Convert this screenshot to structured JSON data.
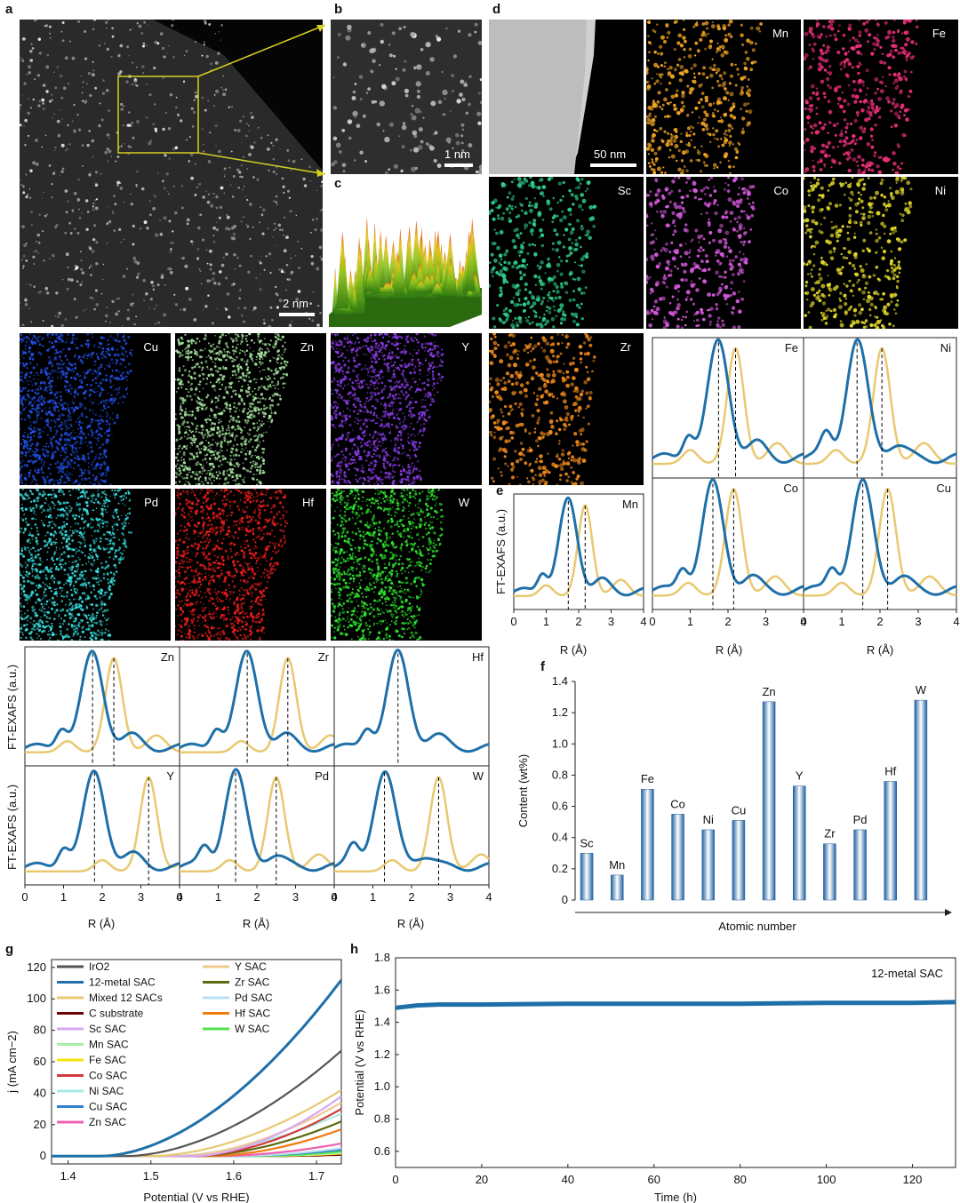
{
  "panel_labels": {
    "a": "a",
    "b": "b",
    "c": "c",
    "d": "d",
    "e": "e",
    "f": "f",
    "g": "g",
    "h": "h"
  },
  "scale_bars": {
    "a": "2 nm",
    "b": "1 nm",
    "d": "50 nm"
  },
  "element_maps": {
    "top": [
      {
        "element": "Mn",
        "color": "#f5a623"
      },
      {
        "element": "Fe",
        "color": "#f0307c"
      },
      {
        "element": "Sc",
        "color": "#2fd08a"
      },
      {
        "element": "Co",
        "color": "#d85ae0"
      },
      {
        "element": "Ni",
        "color": "#e4dc2a"
      },
      {
        "element": "Zr",
        "color": "#f08a1c"
      }
    ],
    "bottom": [
      {
        "element": "Cu",
        "color": "#2150e8"
      },
      {
        "element": "Zn",
        "color": "#a6e6a0"
      },
      {
        "element": "Y",
        "color": "#8a3ce8"
      },
      {
        "element": "Pd",
        "color": "#38e0e0"
      },
      {
        "element": "Hf",
        "color": "#ee1c1c"
      },
      {
        "element": "W",
        "color": "#2ee62e"
      }
    ]
  },
  "colors": {
    "sac": "#1f6fa8",
    "reference": "#e8c870"
  },
  "exafs": {
    "ylabel": "FT-EXAFS (a.u.)",
    "xlabel": "R (Å)",
    "e_panels": [
      {
        "element": "Mn",
        "blue_peak": 1.68,
        "gold_peak": 2.2
      },
      {
        "element": "Fe",
        "blue_peak": 1.75,
        "gold_peak": 2.2
      },
      {
        "element": "Ni",
        "blue_peak": 1.4,
        "gold_peak": 2.05
      },
      {
        "element": "Co",
        "blue_peak": 1.6,
        "gold_peak": 2.15
      },
      {
        "element": "Cu",
        "blue_peak": 1.55,
        "gold_peak": 2.2
      }
    ],
    "e_ticks": [
      "0",
      "1",
      "2",
      "3",
      "4"
    ],
    "lower_panels": [
      {
        "element": "Zn",
        "blue_peak": 1.75,
        "gold_peak": 2.3
      },
      {
        "element": "Zr",
        "blue_peak": 1.75,
        "gold_peak": 2.8
      },
      {
        "element": "Hf",
        "blue_peak": 1.65,
        "gold_peak": null
      },
      {
        "element": "Y",
        "blue_peak": 1.8,
        "gold_peak": 3.2
      },
      {
        "element": "Pd",
        "blue_peak": 1.45,
        "gold_peak": 2.5
      },
      {
        "element": "W",
        "blue_peak": 1.3,
        "gold_peak": 2.7
      }
    ],
    "lower_ticks": [
      "0",
      "1",
      "2",
      "3",
      "4"
    ]
  },
  "chart_data": [
    {
      "type": "bar",
      "panel": "f",
      "categories": [
        "Sc",
        "Mn",
        "Fe",
        "Co",
        "Ni",
        "Cu",
        "Zn",
        "Y",
        "Zr",
        "Pd",
        "Hf",
        "W"
      ],
      "values": [
        0.3,
        0.16,
        0.71,
        0.55,
        0.45,
        0.51,
        1.27,
        0.73,
        0.36,
        0.45,
        0.76,
        1.28
      ],
      "xlabel": "Atomic number",
      "ylabel": "Content (wt%)",
      "ylim": [
        0,
        1.4
      ],
      "yticks": [
        "0",
        "0.2",
        "0.4",
        "0.6",
        "0.8",
        "1.0",
        "1.2",
        "1.4"
      ]
    },
    {
      "type": "line",
      "panel": "g",
      "xlabel": "Potential (V vs RHE)",
      "ylabel": "j (mA cm−2)",
      "xlim": [
        1.38,
        1.73
      ],
      "ylim": [
        -5,
        125
      ],
      "xticks": [
        "1.4",
        "1.5",
        "1.6",
        "1.7"
      ],
      "yticks": [
        "0",
        "20",
        "40",
        "60",
        "80",
        "100",
        "120"
      ],
      "legend": [
        {
          "name": "IrO2",
          "color": "#555555"
        },
        {
          "name": "12-metal SAC",
          "color": "#1f6fa8"
        },
        {
          "name": "Mixed 12 SACs",
          "color": "#e8c870"
        },
        {
          "name": "C substrate",
          "color": "#6b0000"
        },
        {
          "name": "Sc SAC",
          "color": "#d7a8f0"
        },
        {
          "name": "Mn SAC",
          "color": "#a6f0a6"
        },
        {
          "name": "Fe SAC",
          "color": "#f5e50a"
        },
        {
          "name": "Co SAC",
          "color": "#d03a3a"
        },
        {
          "name": "Ni SAC",
          "color": "#a8ece8"
        },
        {
          "name": "Cu SAC",
          "color": "#2f7fd0"
        },
        {
          "name": "Zn SAC",
          "color": "#f060b0"
        },
        {
          "name": "Y SAC",
          "color": "#f0c890"
        },
        {
          "name": "Zr SAC",
          "color": "#5a6b10"
        },
        {
          "name": "Pd SAC",
          "color": "#b8e0f0"
        },
        {
          "name": "Hf SAC",
          "color": "#f07a10"
        },
        {
          "name": "W SAC",
          "color": "#50e050"
        }
      ],
      "series": [
        {
          "name": "12-metal SAC",
          "onset": 1.44,
          "end_value": 112
        },
        {
          "name": "IrO2",
          "onset": 1.47,
          "end_value": 67
        },
        {
          "name": "Mixed 12 SACs",
          "onset": 1.5,
          "end_value": 42
        },
        {
          "name": "Sc SAC",
          "onset": 1.55,
          "end_value": 38
        },
        {
          "name": "Y SAC",
          "onset": 1.53,
          "end_value": 34
        },
        {
          "name": "Co SAC",
          "onset": 1.55,
          "end_value": 30
        },
        {
          "name": "Ni SAC",
          "onset": 1.52,
          "end_value": 27
        },
        {
          "name": "Zr SAC",
          "onset": 1.55,
          "end_value": 22
        },
        {
          "name": "Hf SAC",
          "onset": 1.57,
          "end_value": 17
        },
        {
          "name": "Zn SAC",
          "onset": 1.58,
          "end_value": 8
        },
        {
          "name": "Pd SAC",
          "onset": 1.6,
          "end_value": 5
        },
        {
          "name": "Cu SAC",
          "onset": 1.6,
          "end_value": 4
        },
        {
          "name": "W SAC",
          "onset": 1.62,
          "end_value": 3
        },
        {
          "name": "Mn SAC",
          "onset": 1.62,
          "end_value": 2
        },
        {
          "name": "Fe SAC",
          "onset": 1.63,
          "end_value": 1.5
        },
        {
          "name": "C substrate",
          "onset": 1.65,
          "end_value": 0.8
        }
      ]
    },
    {
      "type": "line",
      "panel": "h",
      "xlabel": "Time (h)",
      "ylabel": "Potential (V vs RHE)",
      "xlim": [
        0,
        130
      ],
      "ylim": [
        0.5,
        1.8
      ],
      "xticks": [
        "0",
        "20",
        "40",
        "60",
        "80",
        "100",
        "120"
      ],
      "yticks": [
        "0.6",
        "0.8",
        "1.0",
        "1.2",
        "1.4",
        "1.6",
        "1.8"
      ],
      "annotation": "12-metal SAC",
      "series": [
        {
          "name": "12-metal SAC",
          "x": [
            0,
            5,
            10,
            20,
            40,
            60,
            80,
            100,
            120,
            130
          ],
          "y": [
            1.49,
            1.505,
            1.51,
            1.51,
            1.515,
            1.515,
            1.515,
            1.52,
            1.52,
            1.525
          ]
        }
      ]
    }
  ]
}
